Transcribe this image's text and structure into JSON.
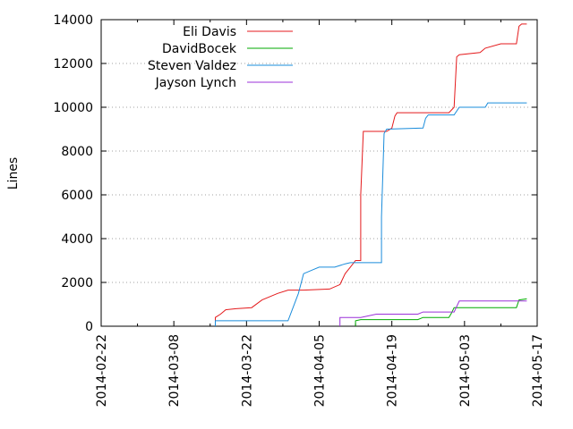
{
  "chart_data": {
    "type": "line",
    "title": "",
    "xlabel": "",
    "ylabel": "Lines",
    "x_type": "date",
    "xlim": [
      "2014-02-22",
      "2014-05-17"
    ],
    "ylim": [
      0,
      14000
    ],
    "x_ticks": [
      "2014-02-22",
      "2014-03-08",
      "2014-03-22",
      "2014-04-05",
      "2014-04-19",
      "2014-05-03",
      "2014-05-17"
    ],
    "y_ticks": [
      0,
      2000,
      4000,
      6000,
      8000,
      10000,
      12000,
      14000
    ],
    "grid": "horizontal dotted at y ticks",
    "legend_position": "top-left",
    "series": [
      {
        "name": "Eli Davis",
        "color": "#e41a1c",
        "points": [
          [
            "2014-03-16",
            0
          ],
          [
            "2014-03-16",
            400
          ],
          [
            "2014-03-17",
            550
          ],
          [
            "2014-03-18",
            750
          ],
          [
            "2014-03-20",
            800
          ],
          [
            "2014-03-23",
            850
          ],
          [
            "2014-03-25",
            1200
          ],
          [
            "2014-03-28",
            1500
          ],
          [
            "2014-03-30",
            1650
          ],
          [
            "2014-04-02",
            1650
          ],
          [
            "2014-04-07",
            1700
          ],
          [
            "2014-04-09",
            1900
          ],
          [
            "2014-04-10",
            2400
          ],
          [
            "2014-04-11",
            2700
          ],
          [
            "2014-04-12",
            3000
          ],
          [
            "2014-04-13",
            3000
          ],
          [
            "2014-04-13",
            6000
          ],
          [
            "2014-04-13.5",
            8900
          ],
          [
            "2014-04-18",
            8900
          ],
          [
            "2014-04-19",
            9050
          ],
          [
            "2014-04-19.6",
            9600
          ],
          [
            "2014-04-20",
            9750
          ],
          [
            "2014-04-30",
            9750
          ],
          [
            "2014-05-01",
            10000
          ],
          [
            "2014-05-01.5",
            12300
          ],
          [
            "2014-05-02",
            12400
          ],
          [
            "2014-05-06",
            12500
          ],
          [
            "2014-05-07",
            12700
          ],
          [
            "2014-05-10",
            12900
          ],
          [
            "2014-05-13",
            12900
          ],
          [
            "2014-05-13.5",
            13700
          ],
          [
            "2014-05-14",
            13800
          ],
          [
            "2014-05-15",
            13800
          ]
        ]
      },
      {
        "name": "DavidBocek",
        "color": "#00aa00",
        "points": [
          [
            "2014-04-12",
            0
          ],
          [
            "2014-04-12",
            250
          ],
          [
            "2014-04-13",
            300
          ],
          [
            "2014-04-24",
            300
          ],
          [
            "2014-04-25",
            400
          ],
          [
            "2014-04-30",
            400
          ],
          [
            "2014-04-30.5",
            600
          ],
          [
            "2014-05-01",
            850
          ],
          [
            "2014-05-13",
            850
          ],
          [
            "2014-05-13.5",
            1200
          ],
          [
            "2014-05-15",
            1250
          ]
        ]
      },
      {
        "name": "Steven Valdez",
        "color": "#1a8cdb",
        "points": [
          [
            "2014-03-16",
            0
          ],
          [
            "2014-03-16",
            250
          ],
          [
            "2014-03-30",
            250
          ],
          [
            "2014-04-01",
            1500
          ],
          [
            "2014-04-02",
            2400
          ],
          [
            "2014-04-04",
            2600
          ],
          [
            "2014-04-05",
            2700
          ],
          [
            "2014-04-08",
            2700
          ],
          [
            "2014-04-10",
            2850
          ],
          [
            "2014-04-11",
            2900
          ],
          [
            "2014-04-17",
            2900
          ],
          [
            "2014-04-17",
            5000
          ],
          [
            "2014-04-17.5",
            8800
          ],
          [
            "2014-04-18",
            9000
          ],
          [
            "2014-04-25",
            9050
          ],
          [
            "2014-04-25.5",
            9500
          ],
          [
            "2014-04-26",
            9650
          ],
          [
            "2014-05-01",
            9650
          ],
          [
            "2014-05-02",
            10000
          ],
          [
            "2014-05-07",
            10000
          ],
          [
            "2014-05-07.5",
            10200
          ],
          [
            "2014-05-15",
            10200
          ]
        ]
      },
      {
        "name": "Jayson Lynch",
        "color": "#9b30d9",
        "points": [
          [
            "2014-04-09",
            0
          ],
          [
            "2014-04-09",
            400
          ],
          [
            "2014-04-13",
            400
          ],
          [
            "2014-04-14",
            450
          ],
          [
            "2014-04-15",
            500
          ],
          [
            "2014-04-16",
            550
          ],
          [
            "2014-04-24",
            550
          ],
          [
            "2014-04-25",
            650
          ],
          [
            "2014-05-01",
            650
          ],
          [
            "2014-05-02",
            1150
          ],
          [
            "2014-05-15",
            1150
          ]
        ]
      }
    ]
  }
}
